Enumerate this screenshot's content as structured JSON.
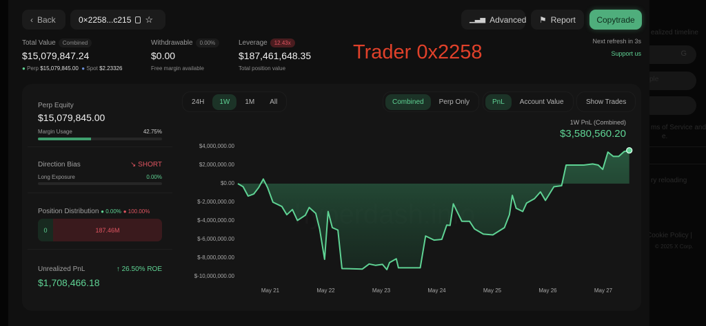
{
  "header": {
    "back_label": "Back",
    "address": "0×2258...c215",
    "advanced_label": "Advanced",
    "report_label": "Report",
    "copytrade_label": "Copytrade",
    "refresh_text": "Next refresh in 3s",
    "support_label": "Support us"
  },
  "overlay_title": "Trader 0x2258",
  "summary": {
    "total_value": {
      "label": "Total Value",
      "badge": "Combined",
      "value": "$15,079,847.24",
      "perp_label": "Perp",
      "perp_value": "$15,079,845.00",
      "spot_label": "Spot",
      "spot_value": "$2.23326"
    },
    "withdrawable": {
      "label": "Withdrawable",
      "badge": "0.00%",
      "value": "$0.00",
      "sub": "Free margin available"
    },
    "leverage": {
      "label": "Leverage",
      "badge": "12.43x",
      "value": "$187,461,648.35",
      "sub": "Total position value"
    }
  },
  "left": {
    "perp_equity": {
      "label": "Perp Equity",
      "value": "$15,079,845.00",
      "margin_label": "Margin Usage",
      "margin_value": "42.75%",
      "margin_fraction": 0.4275
    },
    "direction": {
      "label": "Direction Bias",
      "value": "SHORT",
      "long_label": "Long Exposure",
      "long_value": "0.00%",
      "long_fraction": 0
    },
    "distribution": {
      "label": "Position Distribution",
      "long_pct": "0.00%",
      "short_pct": "100.00%",
      "long_amount": "0",
      "short_amount": "187.46M"
    },
    "upnl": {
      "label": "Unrealized PnL",
      "roe": "26.50% ROE",
      "value": "$1,708,466.18"
    }
  },
  "controls": {
    "ranges": [
      "24H",
      "1W",
      "1M",
      "All"
    ],
    "range_selected": "1W",
    "modes": [
      "Combined",
      "Perp Only"
    ],
    "mode_selected": "Combined",
    "metrics": [
      "PnL",
      "Account Value"
    ],
    "metric_selected": "PnL",
    "show_trades": "Show Trades"
  },
  "pnl_summary": {
    "label": "1W PnL (Combined)",
    "value": "$3,580,560.20"
  },
  "watermark": "hyperdash.info",
  "background_fragments": [
    "ealized timeline",
    "ple",
    "ms of Service and",
    "e.",
    "ry reloading",
    "Cookie Policy |",
    "© 2025 X Corp."
  ],
  "colors": {
    "accent": "#5fd394",
    "negative": "#e05561",
    "title": "#e0412a"
  },
  "chart_data": {
    "type": "area",
    "ylabel": "",
    "xlabel": "",
    "ylim": [
      -10000000,
      4000000
    ],
    "yticks": [
      "$4,000,000.00",
      "$2,000,000.00",
      "$0.00",
      "$-2,000,000.00",
      "$-4,000,000.00",
      "$-6,000,000.00",
      "$-8,000,000.00",
      "$-10,000,000.00"
    ],
    "ytick_values": [
      4000000,
      2000000,
      0,
      -2000000,
      -4000000,
      -6000000,
      -8000000,
      -10000000
    ],
    "xticks": [
      "May 21",
      "May 22",
      "May 23",
      "May 24",
      "May 25",
      "May 26",
      "May 27"
    ],
    "grid": false,
    "points": [
      [
        "May 20 10:00",
        0
      ],
      [
        "May 20 12:15",
        -330000
      ],
      [
        "May 20 14:25",
        -1340000
      ],
      [
        "May 20 16:50",
        -1120000
      ],
      [
        "May 20 19:00",
        -420000
      ],
      [
        "May 20 21:00",
        500000
      ],
      [
        "May 20 22:50",
        -420000
      ],
      [
        "May 21 01:10",
        -2000000
      ],
      [
        "May 21 05:00",
        -2460000
      ],
      [
        "May 21 07:10",
        -3350000
      ],
      [
        "May 21 09:35",
        -2790000
      ],
      [
        "May 21 11:45",
        -3960000
      ],
      [
        "May 21 15:10",
        -3400000
      ],
      [
        "May 21 16:50",
        -2570000
      ],
      [
        "May 21 19:40",
        -3200000
      ],
      [
        "May 21 21:20",
        -4880000
      ],
      [
        "May 21 23:30",
        -8150000
      ],
      [
        "May 22 01:00",
        -3000000
      ],
      [
        "May 22 02:50",
        -4740000
      ],
      [
        "May 22 05:15",
        -5000000
      ],
      [
        "May 22 07:00",
        -9150000
      ],
      [
        "May 22 15:50",
        -9200000
      ],
      [
        "May 22 18:45",
        -8650000
      ],
      [
        "May 22 21:35",
        -8800000
      ],
      [
        "May 23 00:30",
        -8700000
      ],
      [
        "May 23 02:25",
        -9260000
      ],
      [
        "May 23 03:35",
        -8500000
      ],
      [
        "May 23 06:30",
        -8100000
      ],
      [
        "May 23 07:25",
        -9070000
      ],
      [
        "May 23 16:50",
        -9070000
      ],
      [
        "May 23 19:10",
        -5640000
      ],
      [
        "May 23 22:50",
        -6080000
      ],
      [
        "May 24 02:10",
        -6000000
      ],
      [
        "May 24 04:20",
        -4460000
      ],
      [
        "May 24 05:45",
        -4500000
      ],
      [
        "May 24 07:10",
        -2180000
      ],
      [
        "May 24 10:50",
        -4050000
      ],
      [
        "May 24 14:10",
        -4050000
      ],
      [
        "May 24 16:20",
        -4880000
      ],
      [
        "May 24 20:10",
        -5440000
      ],
      [
        "May 25 00:15",
        -5520000
      ],
      [
        "May 25 05:15",
        -4740000
      ],
      [
        "May 25 07:25",
        -3350000
      ],
      [
        "May 25 08:40",
        -1260000
      ],
      [
        "May 25 10:20",
        -2650000
      ],
      [
        "May 25 13:10",
        -3000000
      ],
      [
        "May 25 14:50",
        -2090000
      ],
      [
        "May 25 18:15",
        -1620000
      ],
      [
        "May 25 20:50",
        -890000
      ],
      [
        "May 25 23:00",
        -1810000
      ],
      [
        "May 26 02:40",
        -330000
      ],
      [
        "May 26 06:00",
        -220000
      ],
      [
        "May 26 07:55",
        2000000
      ],
      [
        "May 26 15:35",
        2000000
      ],
      [
        "May 26 19:25",
        2120000
      ],
      [
        "May 26 21:50",
        2000000
      ],
      [
        "May 26 23:45",
        1530000
      ],
      [
        "May 27 02:00",
        3400000
      ],
      [
        "May 27 04:20",
        2930000
      ],
      [
        "May 27 06:40",
        2930000
      ],
      [
        "May 27 09:00",
        3450000
      ],
      [
        "May 27 11:15",
        3580560.2
      ]
    ]
  }
}
